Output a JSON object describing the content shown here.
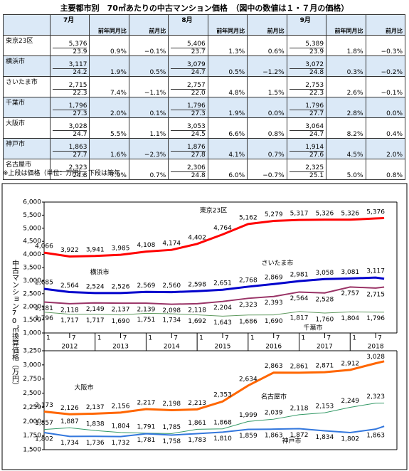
{
  "title": "主要都市別　70㎡あたりの中古マンション価格　（図中の数値は１・７月の価格）",
  "table": {
    "months": [
      "7月",
      "8月",
      "9月"
    ],
    "subheaders": [
      "前年同月比",
      "前月比"
    ],
    "rows": [
      {
        "city": "東京23区",
        "cells": [
          [
            "5,376",
            "23.9",
            "0.9%",
            "−0.1%"
          ],
          [
            "5,406",
            "23.7",
            "1.3%",
            "0.6%"
          ],
          [
            "5,389",
            "23.9",
            "1.8%",
            "−0.3%"
          ]
        ]
      },
      {
        "city": "横浜市",
        "cells": [
          [
            "3,117",
            "24.2",
            "1.9%",
            "0.5%"
          ],
          [
            "3,079",
            "24.7",
            "0.5%",
            "−1.2%"
          ],
          [
            "3,072",
            "24.8",
            "0.3%",
            "−0.2%"
          ]
        ]
      },
      {
        "city": "さいたま市",
        "cells": [
          [
            "2,715",
            "22.3",
            "7.4%",
            "−1.1%"
          ],
          [
            "2,757",
            "22.0",
            "4.8%",
            "1.5%"
          ],
          [
            "2,753",
            "22.3",
            "2.6%",
            "−0.1%"
          ]
        ]
      },
      {
        "city": "千葉市",
        "cells": [
          [
            "1,796",
            "27.3",
            "2.0%",
            "0.1%"
          ],
          [
            "1,796",
            "27.3",
            "1.9%",
            "0.0%"
          ],
          [
            "1,796",
            "27.7",
            "2.8%",
            "0.0%"
          ]
        ]
      },
      {
        "city": "大阪市",
        "cells": [
          [
            "3,028",
            "24.7",
            "5.5%",
            "1.1%"
          ],
          [
            "3,053",
            "24.5",
            "6.6%",
            "0.8%"
          ],
          [
            "3,064",
            "24.7",
            "8.2%",
            "0.4%"
          ]
        ]
      },
      {
        "city": "神戸市",
        "cells": [
          [
            "1,863",
            "27.7",
            "1.6%",
            "−2.3%"
          ],
          [
            "1,876",
            "27.8",
            "4.1%",
            "0.7%"
          ],
          [
            "1,914",
            "27.6",
            "4.5%",
            "2.0%"
          ]
        ]
      },
      {
        "city": "名古屋市",
        "cells": [
          [
            "2,323",
            "24.8",
            "7.9%",
            "0.7%"
          ],
          [
            "2,306",
            "24.8",
            "6.0%",
            "−0.7%"
          ],
          [
            "2,325",
            "25.1",
            "5.0%",
            "0.8%"
          ]
        ]
      }
    ]
  },
  "note": "※上段は価格（単位：万円）、下段は築年",
  "y_axis_label": "中古マンション70㎡換算価格（万円）",
  "chart_data": [
    {
      "type": "line",
      "x": [
        "2012-01",
        "2012-07",
        "2013-01",
        "2013-07",
        "2014-01",
        "2014-07",
        "2015-01",
        "2015-07",
        "2016-01",
        "2016-07",
        "2017-01",
        "2017-07",
        "2018-01",
        "2018-07",
        "2018-09"
      ],
      "xlim": [
        "2012-01",
        "2018-12"
      ],
      "xticks": [
        {
          "value": "2012-01",
          "label": "1"
        },
        {
          "value": "2012-07",
          "label": "7"
        },
        {
          "value": "2013-01",
          "label": "1"
        },
        {
          "value": "2013-07",
          "label": "7"
        },
        {
          "value": "2014-01",
          "label": "1"
        },
        {
          "value": "2014-07",
          "label": "7"
        },
        {
          "value": "2015-01",
          "label": "1"
        },
        {
          "value": "2015-07",
          "label": "7"
        },
        {
          "value": "2016-01",
          "label": "1"
        },
        {
          "value": "2016-07",
          "label": "7"
        },
        {
          "value": "2017-01",
          "label": "1"
        },
        {
          "value": "2017-07",
          "label": "7"
        },
        {
          "value": "2018-01",
          "label": "1"
        },
        {
          "value": "2018-07",
          "label": "7"
        }
      ],
      "x_year_labels": [
        "2012",
        "2013",
        "2014",
        "2015",
        "2016",
        "2017",
        "2018"
      ],
      "ylim": [
        1000,
        6000
      ],
      "yticks": [
        {
          "value": 1000,
          "label": "1,000"
        },
        {
          "value": 1500,
          "label": "1,500"
        },
        {
          "value": 2000,
          "label": "2,000"
        },
        {
          "value": 2500,
          "label": "2,500"
        },
        {
          "value": 3000,
          "label": "3,000"
        },
        {
          "value": 3500,
          "label": "3,500"
        },
        {
          "value": 4000,
          "label": "4,000"
        },
        {
          "value": 4500,
          "label": "4,500"
        },
        {
          "value": 5000,
          "label": "5,000"
        },
        {
          "value": 5500,
          "label": "5,500"
        },
        {
          "value": 6000,
          "label": "6,000"
        }
      ],
      "series": [
        {
          "name": "東京23区",
          "color": "#ff0000",
          "width": 3,
          "values": [
            4066,
            3922,
            3941,
            3985,
            4108,
            4174,
            4402,
            4764,
            5162,
            5279,
            5317,
            5326,
            5326,
            5376,
            5389
          ],
          "value_labels": [
            "4,066",
            "3,922",
            "3,941",
            "3,985",
            "4,108",
            "4,174",
            "4,402",
            "4,764",
            "5,162",
            "5,279",
            "5,317",
            "5,326",
            "5,326",
            "5,376",
            null
          ]
        },
        {
          "name": "横浜市",
          "color": "#0000cc",
          "width": 3,
          "values": [
            2685,
            2564,
            2524,
            2526,
            2569,
            2560,
            2598,
            2651,
            2768,
            2869,
            2981,
            3058,
            3081,
            3117,
            3072
          ],
          "value_labels": [
            "2,685",
            "2,564",
            "2,524",
            "2,526",
            "2,569",
            "2,560",
            "2,598",
            "2,651",
            "2,768",
            "2,869",
            "2,981",
            "3,058",
            "3,081",
            "3,117",
            null
          ]
        },
        {
          "name": "さいたま市",
          "color": "#993366",
          "width": 2,
          "values": [
            2181,
            2118,
            2149,
            2137,
            2139,
            2098,
            2118,
            2204,
            2323,
            2393,
            2564,
            2528,
            2757,
            2715,
            2753
          ],
          "value_labels": [
            "2,181",
            "2,118",
            "2,149",
            "2,137",
            "2,139",
            "2,098",
            "2,118",
            "2,204",
            "2,323",
            "2,393",
            "2,564",
            "2,528",
            "2,757",
            "2,715",
            null
          ]
        },
        {
          "name": "千葉市",
          "color": "#5f9a5f",
          "width": 1,
          "values": [
            1796,
            1717,
            1717,
            1690,
            1751,
            1734,
            1692,
            1643,
            1686,
            1690,
            1817,
            1760,
            1804,
            1796,
            1796
          ],
          "value_labels": [
            "1,796",
            "1,717",
            "1,717",
            "1,690",
            "1,751",
            "1,734",
            "1,692",
            "1,643",
            "1,686",
            "1,690",
            "1,817",
            "1,760",
            "1,804",
            "1,796",
            null
          ]
        }
      ]
    },
    {
      "type": "line",
      "x": [
        "2012-01",
        "2012-07",
        "2013-01",
        "2013-07",
        "2014-01",
        "2014-07",
        "2015-01",
        "2015-07",
        "2016-01",
        "2016-07",
        "2017-01",
        "2017-07",
        "2018-01",
        "2018-07",
        "2018-09"
      ],
      "xlim": [
        "2012-01",
        "2018-12"
      ],
      "ylim": [
        1500,
        3250
      ],
      "yticks": [
        {
          "value": 1500,
          "label": "1,500"
        },
        {
          "value": 1750,
          "label": "1,750"
        },
        {
          "value": 2000,
          "label": "2,000"
        },
        {
          "value": 2250,
          "label": "2,250"
        },
        {
          "value": 2500,
          "label": "2,500"
        },
        {
          "value": 2750,
          "label": "2,750"
        },
        {
          "value": 3000,
          "label": "3,000"
        },
        {
          "value": 3250,
          "label": "3,250"
        }
      ],
      "series": [
        {
          "name": "大阪市",
          "color": "#ff6600",
          "width": 3,
          "values": [
            2173,
            2126,
            2137,
            2156,
            2217,
            2198,
            2213,
            2353,
            2634,
            2863,
            2861,
            2871,
            2912,
            3028,
            3064
          ],
          "value_labels": [
            "2,173",
            "2,126",
            "2,137",
            "2,156",
            "2,217",
            "2,198",
            "2,213",
            "2,353",
            "2,634",
            "2,863",
            "2,861",
            "2,871",
            "2,912",
            "3,028",
            null
          ]
        },
        {
          "name": "名古屋市",
          "color": "#339966",
          "width": 1,
          "values": [
            1857,
            1887,
            1838,
            1804,
            1791,
            1785,
            1861,
            1868,
            1999,
            2039,
            2118,
            2153,
            2249,
            2323,
            2325
          ],
          "value_labels": [
            "1,857",
            "1,887",
            "1,838",
            "1,804",
            "1,791",
            "1,785",
            "1,861",
            "1,868",
            "1,999",
            "2,039",
            "2,118",
            "2,153",
            "2,249",
            "2,323",
            null
          ]
        },
        {
          "name": "神戸市",
          "color": "#3377dd",
          "width": 2,
          "values": [
            1802,
            1734,
            1736,
            1732,
            1781,
            1758,
            1783,
            1810,
            1859,
            1863,
            1872,
            1834,
            1802,
            1863,
            1914
          ],
          "value_labels": [
            "1,802",
            "1,734",
            "1,736",
            "1,732",
            "1,781",
            "1,758",
            "1,783",
            "1,810",
            "1,859",
            "1,863",
            "1,872",
            "1,834",
            "1,802",
            "1,863",
            null
          ]
        }
      ]
    }
  ]
}
